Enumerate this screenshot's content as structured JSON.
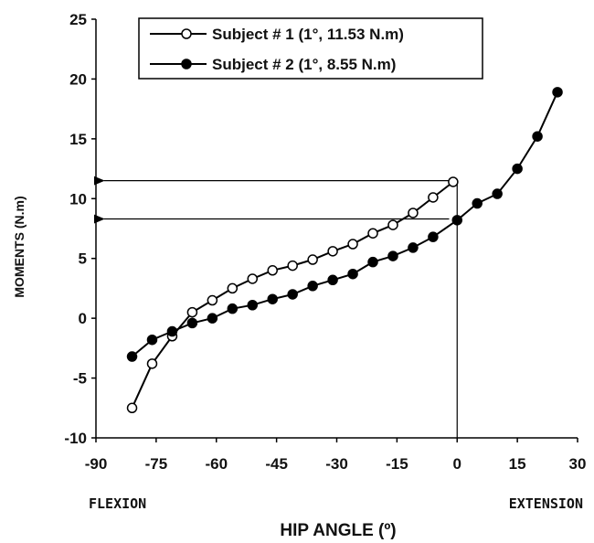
{
  "chart_data": {
    "type": "line",
    "xlabel": "HIP ANGLE (º)",
    "ylabel": "MOMENTS (N.m)",
    "xlim": [
      -90,
      30
    ],
    "ylim": [
      -10,
      25
    ],
    "xticks": [
      -90,
      -75,
      -60,
      -45,
      -30,
      -15,
      0,
      15,
      30
    ],
    "yticks": [
      -10,
      -5,
      0,
      5,
      10,
      15,
      20,
      25
    ],
    "left_end_label": "FLEXION",
    "right_end_label": "EXTENSION",
    "grid": false,
    "legend_position": "top",
    "series": [
      {
        "name": "Subject # 1 (1°, 11.53 N.m)",
        "marker": "open-circle",
        "color": "#000000",
        "points": [
          [
            -81,
            -7.5
          ],
          [
            -76,
            -3.8
          ],
          [
            -71,
            -1.5
          ],
          [
            -66,
            0.5
          ],
          [
            -61,
            1.5
          ],
          [
            -56,
            2.5
          ],
          [
            -51,
            3.3
          ],
          [
            -46,
            4.0
          ],
          [
            -41,
            4.4
          ],
          [
            -36,
            4.9
          ],
          [
            -31,
            5.6
          ],
          [
            -26,
            6.2
          ],
          [
            -21,
            7.1
          ],
          [
            -16,
            7.8
          ],
          [
            -11,
            8.8
          ],
          [
            -6,
            10.1
          ],
          [
            -1,
            11.4
          ]
        ]
      },
      {
        "name": "Subject # 2 (1°, 8.55 N.m)",
        "marker": "filled-circle",
        "color": "#000000",
        "points": [
          [
            -81,
            -3.2
          ],
          [
            -76,
            -1.8
          ],
          [
            -71,
            -1.1
          ],
          [
            -66,
            -0.4
          ],
          [
            -61,
            0.0
          ],
          [
            -56,
            0.8
          ],
          [
            -51,
            1.1
          ],
          [
            -46,
            1.6
          ],
          [
            -41,
            2.0
          ],
          [
            -36,
            2.7
          ],
          [
            -31,
            3.2
          ],
          [
            -26,
            3.7
          ],
          [
            -21,
            4.7
          ],
          [
            -16,
            5.2
          ],
          [
            -11,
            5.9
          ],
          [
            -6,
            6.8
          ],
          [
            0,
            8.2
          ],
          [
            5,
            9.6
          ],
          [
            10,
            10.4
          ],
          [
            15,
            12.5
          ],
          [
            20,
            15.2
          ],
          [
            25,
            18.9
          ]
        ]
      }
    ],
    "annotations": [
      {
        "type": "arrow",
        "from": [
          -2,
          11.5
        ],
        "to": [
          -88,
          11.5
        ]
      },
      {
        "type": "arrow",
        "from": [
          -2,
          8.3
        ],
        "to": [
          -88,
          8.3
        ]
      },
      {
        "type": "vline",
        "x": 0,
        "y_from": -10,
        "y_to": 11.4
      }
    ]
  }
}
